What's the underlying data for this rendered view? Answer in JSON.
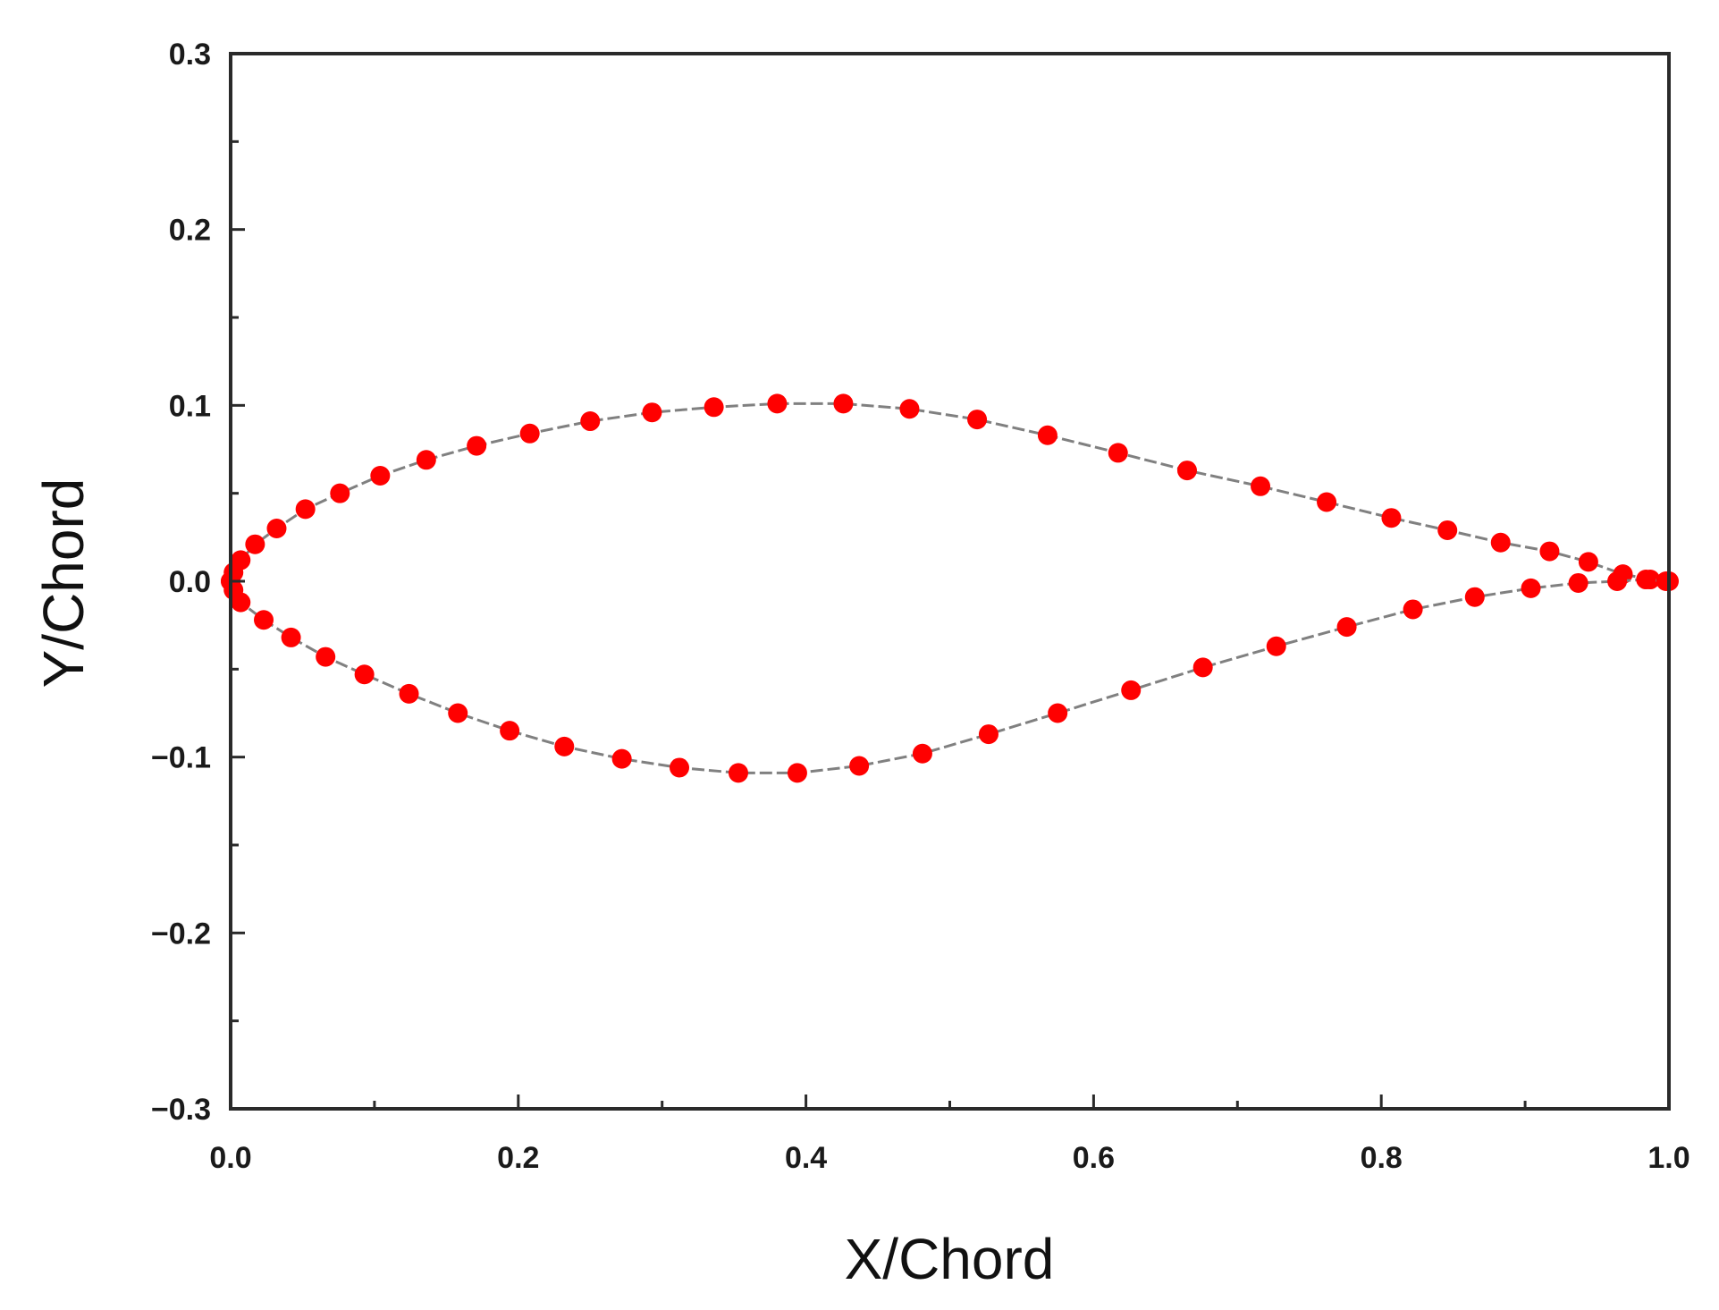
{
  "chart_data": {
    "type": "scatter",
    "title": "",
    "xlabel": "X/Chord",
    "ylabel": "Y/Chord",
    "xlim": [
      0.0,
      1.0
    ],
    "ylim": [
      -0.3,
      0.3
    ],
    "x_ticks": [
      "0.0",
      "0.2",
      "0.4",
      "0.6",
      "0.8",
      "1.0"
    ],
    "x_tick_values": [
      0.0,
      0.2,
      0.4,
      0.6,
      0.8,
      1.0
    ],
    "y_ticks": [
      "−0.3",
      "−0.2",
      "−0.1",
      "0.0",
      "0.1",
      "0.2",
      "0.3"
    ],
    "y_tick_values": [
      -0.3,
      -0.2,
      -0.1,
      0.0,
      0.1,
      0.2,
      0.3
    ],
    "grid": false,
    "legend": "none",
    "marker_color": "#ff0000",
    "line_color": "#808080",
    "series": [
      {
        "points": [
          [
            1.0,
            0.0
          ],
          [
            0.987,
            0.001
          ],
          [
            0.968,
            0.004
          ],
          [
            0.944,
            0.011
          ],
          [
            0.917,
            0.017
          ],
          [
            0.883,
            0.022
          ],
          [
            0.846,
            0.029
          ],
          [
            0.807,
            0.036
          ],
          [
            0.762,
            0.045
          ],
          [
            0.716,
            0.054
          ],
          [
            0.665,
            0.063
          ],
          [
            0.617,
            0.073
          ],
          [
            0.568,
            0.083
          ],
          [
            0.519,
            0.092
          ],
          [
            0.472,
            0.098
          ],
          [
            0.426,
            0.101
          ],
          [
            0.38,
            0.101
          ],
          [
            0.336,
            0.099
          ],
          [
            0.293,
            0.096
          ],
          [
            0.25,
            0.091
          ],
          [
            0.208,
            0.084
          ],
          [
            0.171,
            0.077
          ],
          [
            0.136,
            0.069
          ],
          [
            0.104,
            0.06
          ],
          [
            0.076,
            0.05
          ],
          [
            0.052,
            0.041
          ],
          [
            0.032,
            0.03
          ],
          [
            0.017,
            0.021
          ],
          [
            0.007,
            0.012
          ],
          [
            0.002,
            0.005
          ],
          [
            0.0,
            0.0
          ]
        ]
      },
      {
        "points": [
          [
            0.0,
            0.0
          ],
          [
            0.002,
            -0.005
          ],
          [
            0.007,
            -0.012
          ],
          [
            0.023,
            -0.022
          ],
          [
            0.042,
            -0.032
          ],
          [
            0.066,
            -0.043
          ],
          [
            0.093,
            -0.053
          ],
          [
            0.124,
            -0.064
          ],
          [
            0.158,
            -0.075
          ],
          [
            0.194,
            -0.085
          ],
          [
            0.232,
            -0.094
          ],
          [
            0.272,
            -0.101
          ],
          [
            0.312,
            -0.106
          ],
          [
            0.353,
            -0.109
          ],
          [
            0.394,
            -0.109
          ],
          [
            0.437,
            -0.105
          ],
          [
            0.481,
            -0.098
          ],
          [
            0.527,
            -0.087
          ],
          [
            0.575,
            -0.075
          ],
          [
            0.626,
            -0.062
          ],
          [
            0.676,
            -0.049
          ],
          [
            0.727,
            -0.037
          ],
          [
            0.776,
            -0.026
          ],
          [
            0.822,
            -0.016
          ],
          [
            0.865,
            -0.009
          ],
          [
            0.904,
            -0.004
          ],
          [
            0.937,
            -0.001
          ],
          [
            0.964,
            0.0
          ],
          [
            0.984,
            0.001
          ],
          [
            0.998,
            0.0
          ]
        ]
      }
    ]
  }
}
